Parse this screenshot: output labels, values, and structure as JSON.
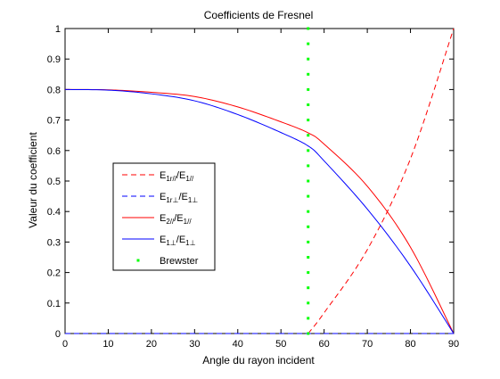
{
  "chart_data": {
    "type": "line",
    "title": "Coefficients de Fresnel",
    "xlabel": "Angle du rayon incident",
    "ylabel": "Valeur du coefficient",
    "xlim": [
      0,
      90
    ],
    "ylim": [
      0,
      1
    ],
    "xticks": [
      0,
      10,
      20,
      30,
      40,
      50,
      60,
      70,
      80,
      90
    ],
    "yticks": [
      0,
      0.1,
      0.2,
      0.3,
      0.4,
      0.5,
      0.6,
      0.7,
      0.8,
      0.9,
      1
    ],
    "grid": false,
    "legend_position": "center-left",
    "series": [
      {
        "name_main": "E",
        "name_sub": "1r//",
        "name_mid": "/E",
        "name_sub2": "1//",
        "color": "#ff0000",
        "style": "dashed",
        "x": [
          0,
          10,
          20,
          30,
          40,
          50,
          56.3,
          60,
          70,
          80,
          90
        ],
        "y": [
          0,
          0,
          0,
          0,
          0,
          0,
          0,
          0.068,
          0.275,
          0.573,
          1
        ]
      },
      {
        "name_main": "E",
        "name_sub": "1r⊥",
        "name_mid": "/E",
        "name_sub2": "1⊥",
        "color": "#0000ff",
        "style": "dashed",
        "x": [
          0,
          90
        ],
        "y": [
          0,
          0
        ]
      },
      {
        "name_main": "E",
        "name_sub": "2//",
        "name_mid": "/E",
        "name_sub2": "1//",
        "color": "#ff0000",
        "style": "solid",
        "x": [
          0,
          10,
          20,
          30,
          40,
          50,
          56.3,
          60,
          70,
          80,
          90
        ],
        "y": [
          0.8,
          0.799,
          0.791,
          0.777,
          0.743,
          0.694,
          0.658,
          0.621,
          0.483,
          0.283,
          0
        ]
      },
      {
        "name_main": "E",
        "name_sub": "1⊥",
        "name_mid": "/E",
        "name_sub2": "1⊥",
        "color": "#0000ff",
        "style": "solid",
        "x": [
          0,
          10,
          20,
          30,
          40,
          50,
          56.3,
          60,
          70,
          80,
          90
        ],
        "y": [
          0.8,
          0.798,
          0.786,
          0.763,
          0.718,
          0.659,
          0.615,
          0.566,
          0.408,
          0.221,
          0
        ]
      },
      {
        "name_main": "Brewster",
        "color": "#00ff00",
        "style": "dots",
        "x": [
          56.3
        ],
        "y_range": [
          0,
          1
        ]
      }
    ]
  }
}
